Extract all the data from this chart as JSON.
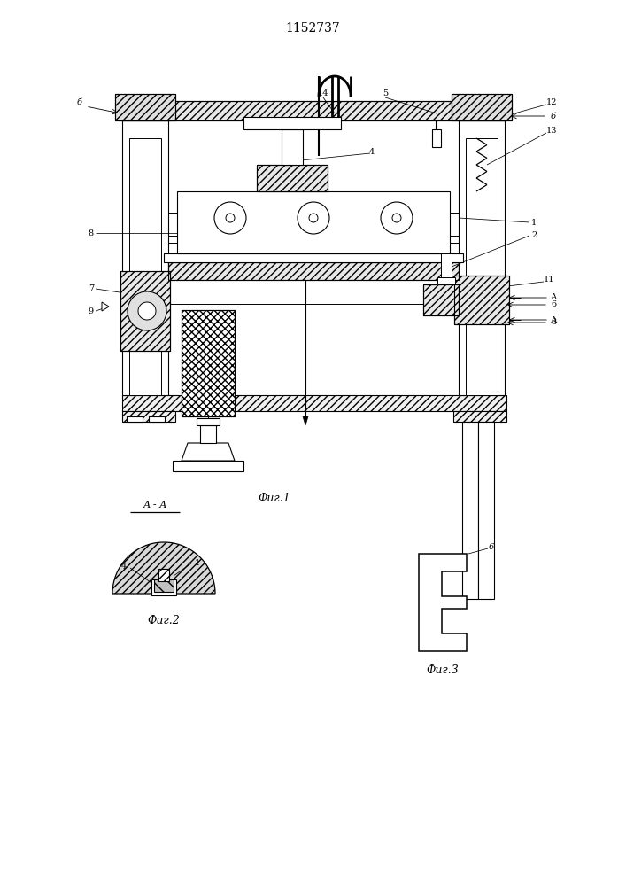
{
  "title": "1152737",
  "fig1_caption": "Фиг.1",
  "fig2_caption": "Фиг.2",
  "fig3_caption": "Фиг.3",
  "fig2_label": "А - А",
  "bg_color": "#ffffff"
}
